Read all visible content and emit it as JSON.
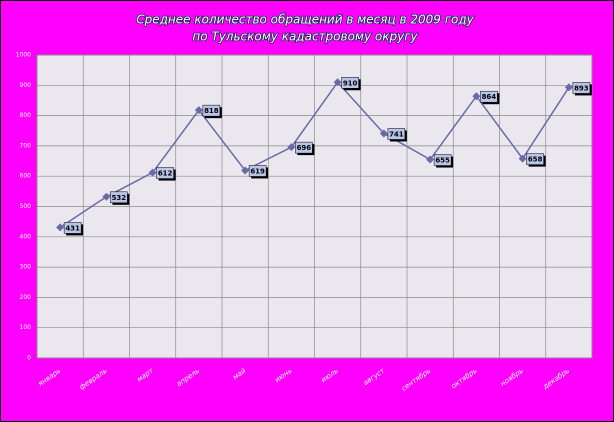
{
  "chart_data": {
    "type": "line",
    "title": "Среднее количество обращений в месяц в 2009 году",
    "subtitle": "по Тульскому кадастровому округу",
    "categories": [
      "январь",
      "февраль",
      "март",
      "апрель",
      "май",
      "июнь",
      "июль",
      "август",
      "сентябрь",
      "октябрь",
      "ноябрь",
      "декабрь"
    ],
    "values": [
      431,
      532,
      612,
      818,
      619,
      696,
      910,
      741,
      655,
      864,
      658,
      893
    ],
    "color": "#6a6aa8",
    "ylim": [
      0,
      1000
    ],
    "yticks": [
      0,
      100,
      200,
      300,
      400,
      500,
      600,
      700,
      800,
      900,
      1000
    ],
    "grid": true
  }
}
